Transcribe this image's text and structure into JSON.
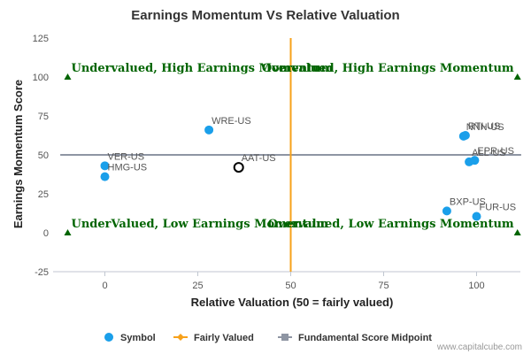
{
  "chart_data": {
    "type": "scatter",
    "title": "Earnings Momentum Vs Relative Valuation",
    "xlabel": "Relative Valuation (50 = fairly valued)",
    "ylabel": "Earnings Momentum Score",
    "xlim": [
      -12,
      112
    ],
    "ylim": [
      -25,
      125
    ],
    "x_ticks": [
      0,
      25,
      50,
      75,
      100
    ],
    "y_ticks": [
      -25,
      0,
      25,
      50,
      75,
      100,
      125
    ],
    "grid": false,
    "series": [
      {
        "name": "Symbol",
        "color": "#1a9fea",
        "points": [
          {
            "label": "WRE-US",
            "x": 28,
            "y": 66
          },
          {
            "label": "VER-US",
            "x": 0,
            "y": 43
          },
          {
            "label": "HMG-US",
            "x": 0,
            "y": 36
          },
          {
            "label": "AAT-US",
            "x": 36,
            "y": 42,
            "highlight": true
          },
          {
            "label": "NNN-US",
            "x": 96.5,
            "y": 62
          },
          {
            "label": "RTI-US",
            "x": 97,
            "y": 62.5
          },
          {
            "label": "ALL-US",
            "x": 98,
            "y": 45.5
          },
          {
            "label": "EPR-US",
            "x": 99.5,
            "y": 46.5
          },
          {
            "label": "BXP-US",
            "x": 92,
            "y": 14
          },
          {
            "label": "FUR-US",
            "x": 100,
            "y": 10.5
          }
        ]
      },
      {
        "name": "Fairly Valued",
        "color": "#f7a11a",
        "x": 50
      },
      {
        "name": "Fundamental Score Midpoint",
        "color": "#8e95a3",
        "y": 50
      }
    ],
    "quadrant_labels": [
      {
        "text": "Undervalued, High Earnings Momentum",
        "x": -10,
        "y": 100
      },
      {
        "text": "Overvalued, High Earnings Momentum",
        "x": 111,
        "y": 100
      },
      {
        "text": "UnderValued, Low Earnings Momentum",
        "x": -10,
        "y": 0
      },
      {
        "text": "Overvalued, Low Earnings Momentum",
        "x": 111,
        "y": 0
      }
    ],
    "legend": {
      "placement": "bottom-left"
    },
    "credit": "www.capitalcube.com"
  }
}
